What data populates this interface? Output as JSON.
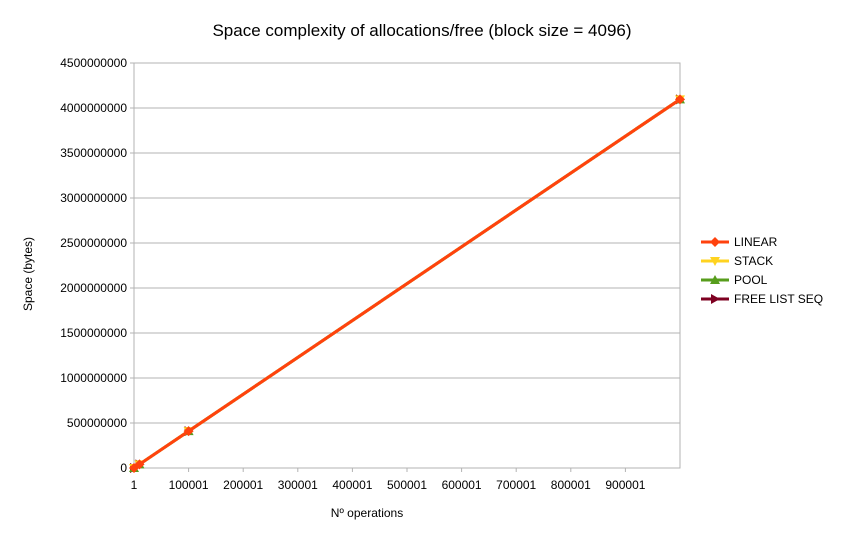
{
  "chart_data": {
    "type": "line",
    "title": "Space complexity of allocations/free (block size = 4096)",
    "xlabel": "Nº operations",
    "ylabel": "Space (bytes)",
    "xlim": [
      1,
      1000001
    ],
    "ylim": [
      0,
      4500000000
    ],
    "x_ticks": [
      "1",
      "100001",
      "200001",
      "300001",
      "400001",
      "500001",
      "600001",
      "700001",
      "800001",
      "900001"
    ],
    "y_ticks": [
      "0",
      "500000000",
      "1000000000",
      "1500000000",
      "2000000000",
      "2500000000",
      "3000000000",
      "3500000000",
      "4000000000",
      "4500000000"
    ],
    "grid": "horizontal",
    "legend_position": "right",
    "x": [
      1,
      10001,
      100001,
      1000001
    ],
    "series": [
      {
        "name": "LINEAR",
        "color": "#ff420e",
        "marker": "diamond",
        "values": [
          4096,
          40964096,
          409604096,
          4096004096
        ]
      },
      {
        "name": "STACK",
        "color": "#ffd320",
        "marker": "triangle-down",
        "values": [
          4096,
          40964096,
          409604096,
          4096004096
        ]
      },
      {
        "name": "POOL",
        "color": "#579d1c",
        "marker": "triangle-up",
        "values": [
          4096,
          40964096,
          409604096,
          4096004096
        ]
      },
      {
        "name": "FREE LIST SEQ",
        "color": "#7e0021",
        "marker": "triangle-right",
        "values": [
          4096,
          40964096,
          409604096,
          4096004096
        ]
      }
    ],
    "draw_order": [
      3,
      2,
      1,
      0
    ]
  }
}
